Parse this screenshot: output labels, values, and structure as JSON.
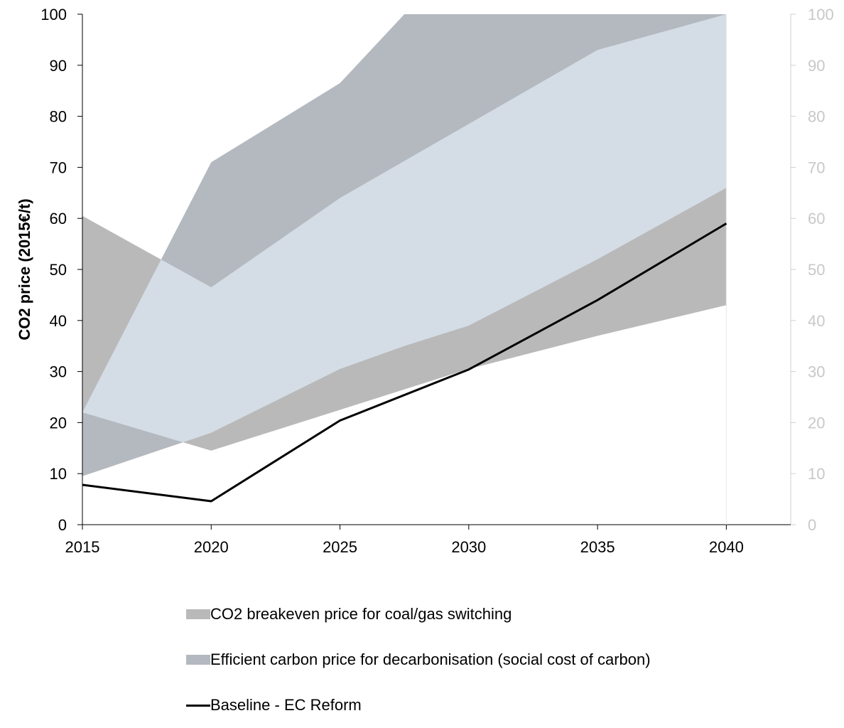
{
  "chart_data": {
    "type": "area",
    "title": "",
    "xlabel": "",
    "ylabel": "CO2 price (2015€/t)",
    "x": [
      2015,
      2020,
      2025,
      2030,
      2035,
      2040
    ],
    "xlim": [
      2015,
      2042.5
    ],
    "ylim": [
      0,
      100
    ],
    "yticks": [
      0,
      10,
      20,
      30,
      40,
      50,
      60,
      70,
      80,
      90,
      100
    ],
    "secondary_yticks": [
      0,
      10,
      20,
      30,
      40,
      50,
      60,
      70,
      80,
      90,
      100
    ],
    "grid": false,
    "legend_position": "bottom",
    "series": [
      {
        "name": "CO2 breakeven price for coal/gas switching",
        "kind": "band",
        "color": "#b9b9b9",
        "x": [
          2015,
          2020,
          2025,
          2030,
          2035,
          2040
        ],
        "lower": [
          22,
          14.5,
          22.5,
          30.5,
          37,
          43
        ],
        "upper": [
          60.5,
          46.5,
          64,
          78.5,
          93,
          100
        ]
      },
      {
        "name": "Efficient carbon price for decarbonisation (social cost of carbon)",
        "kind": "band",
        "color": "#b4b9c0",
        "x": [
          2015,
          2020,
          2025,
          2027.5,
          2030,
          2035,
          2040
        ],
        "lower": [
          9.5,
          18,
          30.5,
          35,
          39,
          52,
          66
        ],
        "upper": [
          22,
          71,
          86.5,
          100,
          100,
          100,
          100
        ]
      },
      {
        "name": "Baseline - EC Reform",
        "kind": "line",
        "color": "#000000",
        "x": [
          2015,
          2020,
          2025,
          2030,
          2035,
          2040
        ],
        "values": [
          7.8,
          4.6,
          20.4,
          30.4,
          44,
          59
        ]
      }
    ],
    "overlap_color": "#d4dde6"
  }
}
